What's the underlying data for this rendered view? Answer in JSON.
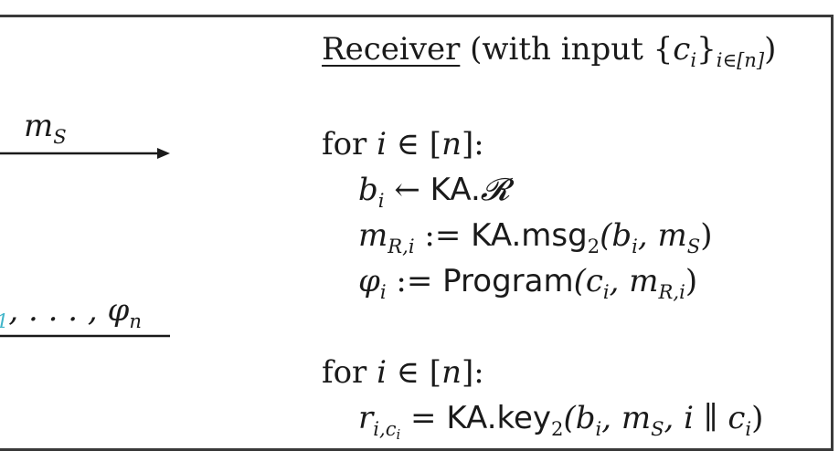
{
  "sender_to_receiver_message": {
    "label_var": "m",
    "label_sub": "S"
  },
  "receiver_to_sender_message": {
    "visible_tail": ", . . . , ",
    "visible_tail_prefix": "1",
    "last_var": "φ",
    "last_sub": "n"
  },
  "receiver": {
    "title": "Receiver",
    "input_prefix": " (with input {",
    "input_var": "c",
    "input_var_sub": "i",
    "input_suffix": "}",
    "input_range": "i∈[n]",
    "input_close": ")",
    "loop1": {
      "keyword": "for",
      "var": "i",
      "rel": " ∈ [",
      "bound": "n",
      "end": "]:",
      "stmt1": {
        "lhs": "b",
        "lhs_sub": "i",
        "op": " ← ",
        "rhs_sf": "KA.",
        "rhs_script": "𝓡"
      },
      "stmt2": {
        "lhs": "m",
        "lhs_sub": "R,i",
        "op": " := ",
        "rhs_sf": "KA.msg",
        "rhs_sub": "2",
        "args": "(b",
        "args_sub": "i",
        "args2": ", m",
        "args2_sub": "S",
        "close": ")"
      },
      "stmt3": {
        "lhs": "φ",
        "lhs_sub": "i",
        "op": " := ",
        "rhs_sf": "Program",
        "args": "(c",
        "args_sub": "i",
        "args2": ", m",
        "args2_sub": "R,i",
        "close": ")"
      }
    },
    "loop2": {
      "keyword": "for",
      "var": "i",
      "rel": " ∈ [",
      "bound": "n",
      "end": "]:",
      "stmt1": {
        "lhs": "r",
        "lhs_sub": "i,c",
        "lhs_subsub": "i",
        "op": " = ",
        "rhs_sf": "KA.key",
        "rhs_sub": "2",
        "args": "(b",
        "args_sub": "i",
        "args2": ", m",
        "args2_sub": "S",
        "args3": ", i ∥ c",
        "args3_sub": "i",
        "close": ")"
      }
    }
  },
  "colors": {
    "frame": "#3a3a3a",
    "text": "#1a1a1a",
    "accent": "#3fb5c9"
  }
}
